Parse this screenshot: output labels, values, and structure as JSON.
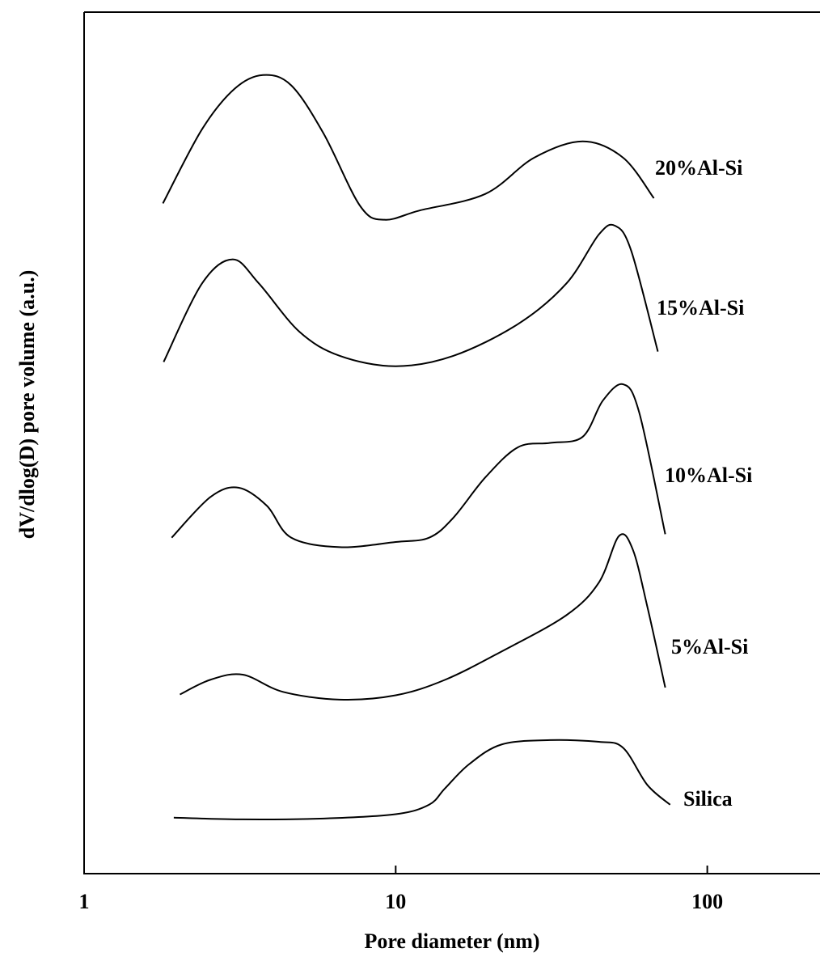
{
  "chart_data": {
    "type": "line",
    "x_label": "Pore diameter (nm)",
    "y_label": "dV/dlog(D) pore volume (a.u.)",
    "xscale": "log",
    "xlim": [
      1,
      230
    ],
    "xticks": [
      1,
      10,
      100
    ],
    "ylim": [
      0,
      100
    ],
    "series": [
      {
        "name": "Silica",
        "color": "#000000",
        "x": [
          1.94,
          3.23,
          5.87,
          10,
          12.8,
          14.4,
          17.2,
          21.9,
          31.3,
          44.9,
          53.7,
          64.2,
          76.0
        ],
        "values": [
          6.5,
          6.3,
          6.4,
          6.9,
          8.0,
          9.9,
          12.7,
          15.0,
          15.5,
          15.3,
          14.6,
          10.3,
          8.0
        ]
      },
      {
        "name": "5%Al-Si",
        "color": "#000000",
        "x": [
          2.03,
          2.54,
          3.23,
          4.35,
          6.62,
          10,
          14.4,
          21.9,
          35.3,
          44.9,
          52.1,
          57.7,
          64.2,
          73.3
        ],
        "values": [
          20.8,
          22.5,
          23.1,
          21.1,
          20.2,
          20.7,
          22.5,
          25.8,
          30.0,
          33.8,
          39.2,
          37.6,
          31.0,
          21.6
        ]
      },
      {
        "name": "10%Al-Si",
        "color": "#000000",
        "x": [
          1.91,
          2.54,
          3.13,
          3.86,
          4.62,
          6.62,
          10,
          12.8,
          15.3,
          19.4,
          24.7,
          31.3,
          39.8,
          46.2,
          53.7,
          60.5,
          73.3
        ],
        "values": [
          39.0,
          43.7,
          44.8,
          42.7,
          39.0,
          37.9,
          38.5,
          39.0,
          41.3,
          46.0,
          49.5,
          50.0,
          50.7,
          54.9,
          56.8,
          53.5,
          39.4
        ]
      },
      {
        "name": "15%Al-Si",
        "color": "#000000",
        "x": [
          1.8,
          2.39,
          3.0,
          3.64,
          4.91,
          6.62,
          10,
          15.3,
          24.7,
          35.3,
          44.9,
          50.6,
          57.0,
          69.4
        ],
        "values": [
          59.4,
          68.5,
          71.3,
          68.5,
          62.9,
          60.1,
          58.9,
          60.1,
          63.8,
          68.5,
          74.2,
          75.2,
          72.3,
          60.6
        ]
      },
      {
        "name": "20%Al-Si",
        "color": "#000000",
        "x": [
          1.79,
          2.39,
          3.04,
          3.75,
          4.62,
          5.87,
          7.69,
          9.2,
          12.0,
          19.4,
          27.8,
          39.8,
          53.7,
          67.4
        ],
        "values": [
          77.8,
          86.4,
          91.1,
          92.7,
          91.5,
          85.9,
          77.5,
          75.9,
          77.0,
          78.9,
          83.1,
          85.0,
          83.1,
          78.4
        ]
      }
    ]
  }
}
